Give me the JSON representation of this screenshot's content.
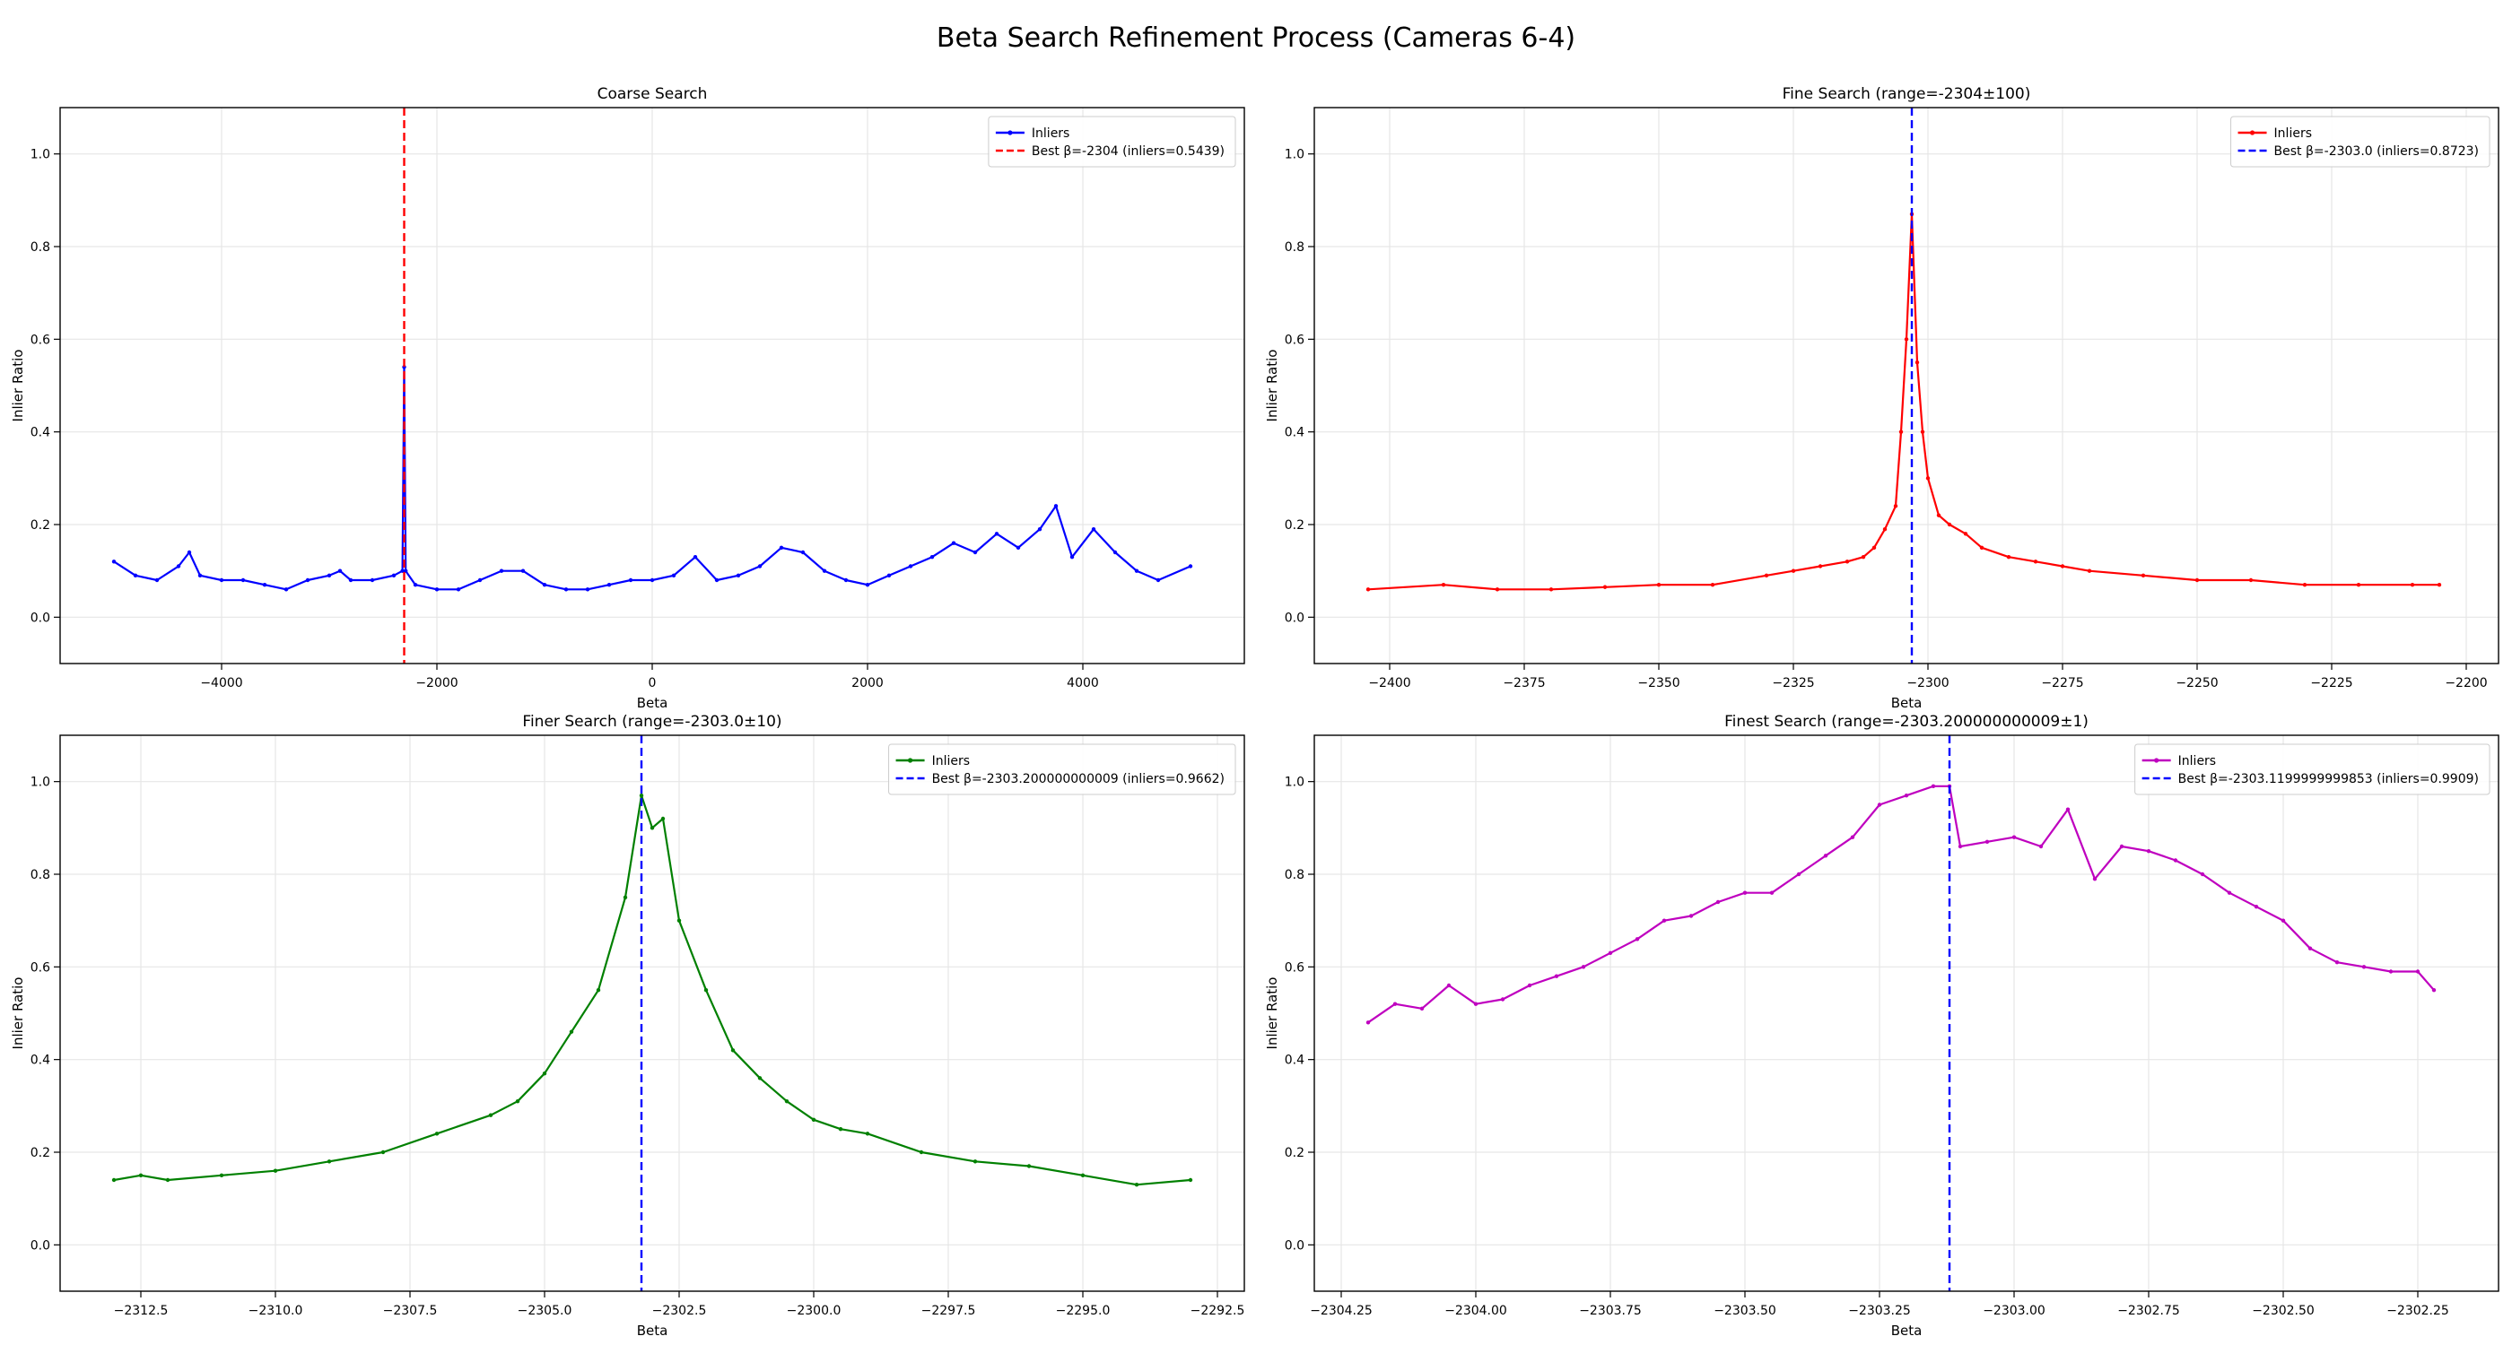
{
  "figure": {
    "title": "Beta Search Refinement Process (Cameras 6-4)"
  },
  "chart_data": [
    {
      "type": "line",
      "title": "Coarse Search",
      "xlabel": "Beta",
      "ylabel": "Inlier Ratio",
      "xlim": [
        -5500,
        5500
      ],
      "ylim": [
        -0.1,
        1.1
      ],
      "xticks": [
        -4000,
        -2000,
        0,
        2000,
        4000
      ],
      "yticks": [
        0.0,
        0.2,
        0.4,
        0.6,
        0.8,
        1.0
      ],
      "xtick_labels": [
        "−4000",
        "−2000",
        "0",
        "2000",
        "4000"
      ],
      "ytick_labels": [
        "0.0",
        "0.2",
        "0.4",
        "0.6",
        "0.8",
        "1.0"
      ],
      "grid": true,
      "legend_position": "top-right",
      "series": [
        {
          "name": "Inliers",
          "color": "#0000ff",
          "x": [
            -5000,
            -4800,
            -4600,
            -4400,
            -4300,
            -4200,
            -4000,
            -3800,
            -3600,
            -3400,
            -3200,
            -3000,
            -2900,
            -2800,
            -2600,
            -2400,
            -2320,
            -2304,
            -2290,
            -2200,
            -2000,
            -1800,
            -1600,
            -1400,
            -1200,
            -1000,
            -800,
            -600,
            -400,
            -200,
            0,
            200,
            400,
            600,
            800,
            1000,
            1200,
            1400,
            1600,
            1800,
            2000,
            2200,
            2400,
            2600,
            2800,
            3000,
            3200,
            3400,
            3600,
            3750,
            3900,
            4100,
            4300,
            4500,
            4700,
            5000
          ],
          "y": [
            0.12,
            0.09,
            0.08,
            0.11,
            0.14,
            0.09,
            0.08,
            0.08,
            0.07,
            0.06,
            0.08,
            0.09,
            0.1,
            0.08,
            0.08,
            0.09,
            0.1,
            0.54,
            0.1,
            0.07,
            0.06,
            0.06,
            0.08,
            0.1,
            0.1,
            0.07,
            0.06,
            0.06,
            0.07,
            0.08,
            0.08,
            0.09,
            0.13,
            0.08,
            0.09,
            0.11,
            0.15,
            0.14,
            0.1,
            0.08,
            0.07,
            0.09,
            0.11,
            0.13,
            0.16,
            0.14,
            0.18,
            0.15,
            0.19,
            0.24,
            0.13,
            0.19,
            0.14,
            0.1,
            0.08,
            0.11
          ]
        },
        {
          "name": "Best β=-2304 (inliers=0.5439)",
          "color": "#ff0000",
          "vline_x": -2304
        }
      ]
    },
    {
      "type": "line",
      "title": "Fine Search (range=-2304±100)",
      "xlabel": "Beta",
      "ylabel": "Inlier Ratio",
      "xlim": [
        -2414,
        -2194
      ],
      "ylim": [
        -0.1,
        1.1
      ],
      "xticks": [
        -2400,
        -2375,
        -2350,
        -2325,
        -2300,
        -2275,
        -2250,
        -2225,
        -2200
      ],
      "yticks": [
        0.0,
        0.2,
        0.4,
        0.6,
        0.8,
        1.0
      ],
      "xtick_labels": [
        "−2400",
        "−2375",
        "−2350",
        "−2325",
        "−2300",
        "−2275",
        "−2250",
        "−2225",
        "−2200"
      ],
      "ytick_labels": [
        "0.0",
        "0.2",
        "0.4",
        "0.6",
        "0.8",
        "1.0"
      ],
      "grid": true,
      "legend_position": "top-right",
      "series": [
        {
          "name": "Inliers",
          "color": "#ff0000",
          "x": [
            -2404,
            -2390,
            -2380,
            -2370,
            -2360,
            -2350,
            -2340,
            -2330,
            -2325,
            -2320,
            -2315,
            -2312,
            -2310,
            -2308,
            -2306,
            -2305,
            -2304,
            -2303,
            -2302,
            -2301,
            -2300,
            -2298,
            -2296,
            -2293,
            -2290,
            -2285,
            -2280,
            -2275,
            -2270,
            -2260,
            -2250,
            -2240,
            -2230,
            -2220,
            -2210,
            -2205
          ],
          "y": [
            0.06,
            0.07,
            0.06,
            0.06,
            0.065,
            0.07,
            0.07,
            0.09,
            0.1,
            0.11,
            0.12,
            0.13,
            0.15,
            0.19,
            0.24,
            0.4,
            0.6,
            0.87,
            0.55,
            0.4,
            0.3,
            0.22,
            0.2,
            0.18,
            0.15,
            0.13,
            0.12,
            0.11,
            0.1,
            0.09,
            0.08,
            0.08,
            0.07,
            0.07,
            0.07,
            0.07
          ]
        },
        {
          "name": "Best β=-2303.0 (inliers=0.8723)",
          "color": "#0000ff",
          "vline_x": -2303.0
        }
      ]
    },
    {
      "type": "line",
      "title": "Finer Search (range=-2303.0±10)",
      "xlabel": "Beta",
      "ylabel": "Inlier Ratio",
      "xlim": [
        -2314.0,
        -2292.0
      ],
      "ylim": [
        -0.1,
        1.1
      ],
      "xticks": [
        -2312.5,
        -2310.0,
        -2307.5,
        -2305.0,
        -2302.5,
        -2300.0,
        -2297.5,
        -2295.0,
        -2292.5
      ],
      "yticks": [
        0.0,
        0.2,
        0.4,
        0.6,
        0.8,
        1.0
      ],
      "xtick_labels": [
        "−2312.5",
        "−2310.0",
        "−2307.5",
        "−2305.0",
        "−2302.5",
        "−2300.0",
        "−2297.5",
        "−2295.0",
        "−2292.5"
      ],
      "ytick_labels": [
        "0.0",
        "0.2",
        "0.4",
        "0.6",
        "0.8",
        "1.0"
      ],
      "grid": true,
      "legend_position": "top-right",
      "series": [
        {
          "name": "Inliers",
          "color": "#008000",
          "x": [
            -2313.0,
            -2312.5,
            -2312.0,
            -2311.0,
            -2310.0,
            -2309.0,
            -2308.0,
            -2307.0,
            -2306.0,
            -2305.5,
            -2305.0,
            -2304.5,
            -2304.0,
            -2303.5,
            -2303.2,
            -2303.0,
            -2302.8,
            -2302.5,
            -2302.0,
            -2301.5,
            -2301.0,
            -2300.5,
            -2300.0,
            -2299.5,
            -2299.0,
            -2298.0,
            -2297.0,
            -2296.0,
            -2295.0,
            -2294.0,
            -2293.0
          ],
          "y": [
            0.14,
            0.15,
            0.14,
            0.15,
            0.16,
            0.18,
            0.2,
            0.24,
            0.28,
            0.31,
            0.37,
            0.46,
            0.55,
            0.75,
            0.97,
            0.9,
            0.92,
            0.7,
            0.55,
            0.42,
            0.36,
            0.31,
            0.27,
            0.25,
            0.24,
            0.2,
            0.18,
            0.17,
            0.15,
            0.13,
            0.14
          ]
        },
        {
          "name": "Best β=-2303.200000000009 (inliers=0.9662)",
          "color": "#0000ff",
          "vline_x": -2303.2
        }
      ]
    },
    {
      "type": "line",
      "title": "Finest Search (range=-2303.200000000009±1)",
      "xlabel": "Beta",
      "ylabel": "Inlier Ratio",
      "xlim": [
        -2304.3,
        -2302.1
      ],
      "ylim": [
        -0.1,
        1.1
      ],
      "xticks": [
        -2304.25,
        -2304.0,
        -2303.75,
        -2303.5,
        -2303.25,
        -2303.0,
        -2302.75,
        -2302.5,
        -2302.25
      ],
      "yticks": [
        0.0,
        0.2,
        0.4,
        0.6,
        0.8,
        1.0
      ],
      "xtick_labels": [
        "−2304.25",
        "−2304.00",
        "−2303.75",
        "−2303.50",
        "−2303.25",
        "−2303.00",
        "−2302.75",
        "−2302.50",
        "−2302.25"
      ],
      "ytick_labels": [
        "0.0",
        "0.2",
        "0.4",
        "0.6",
        "0.8",
        "1.0"
      ],
      "grid": true,
      "legend_position": "top-right",
      "series": [
        {
          "name": "Inliers",
          "color": "#bf00bf",
          "x": [
            -2304.2,
            -2304.15,
            -2304.1,
            -2304.05,
            -2304.0,
            -2303.95,
            -2303.9,
            -2303.85,
            -2303.8,
            -2303.75,
            -2303.7,
            -2303.65,
            -2303.6,
            -2303.55,
            -2303.5,
            -2303.45,
            -2303.4,
            -2303.35,
            -2303.3,
            -2303.25,
            -2303.2,
            -2303.15,
            -2303.12,
            -2303.1,
            -2303.05,
            -2303.0,
            -2302.95,
            -2302.9,
            -2302.85,
            -2302.8,
            -2302.75,
            -2302.7,
            -2302.65,
            -2302.6,
            -2302.55,
            -2302.5,
            -2302.45,
            -2302.4,
            -2302.35,
            -2302.3,
            -2302.25,
            -2302.22
          ],
          "y": [
            0.48,
            0.52,
            0.51,
            0.56,
            0.52,
            0.53,
            0.56,
            0.58,
            0.6,
            0.63,
            0.66,
            0.7,
            0.71,
            0.74,
            0.76,
            0.76,
            0.8,
            0.84,
            0.88,
            0.95,
            0.97,
            0.99,
            0.99,
            0.86,
            0.87,
            0.88,
            0.86,
            0.94,
            0.79,
            0.86,
            0.85,
            0.83,
            0.8,
            0.76,
            0.73,
            0.7,
            0.64,
            0.61,
            0.6,
            0.59,
            0.59,
            0.55
          ]
        },
        {
          "name": "Best β=-2303.1199999999853 (inliers=0.9909)",
          "color": "#0000ff",
          "vline_x": -2303.12
        }
      ]
    }
  ]
}
